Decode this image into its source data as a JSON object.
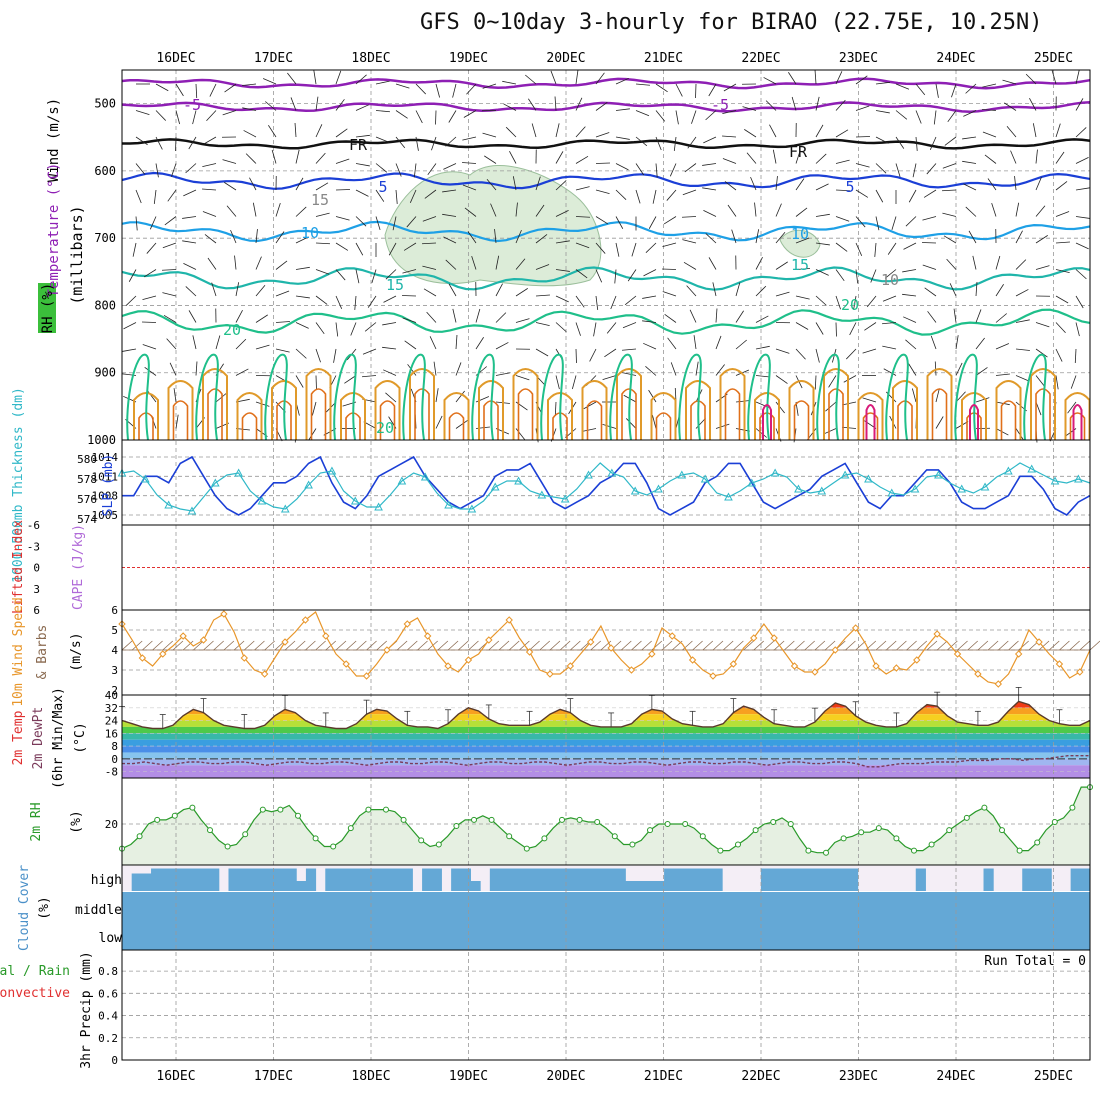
{
  "title": "GFS 0~10day 3-hourly for BIRAO (22.75E, 10.25N)",
  "colors": {
    "frame": "#000000",
    "grid": "#999999",
    "purple": "#8e1fb4",
    "blue_line": "#1b3fd6",
    "light_blue": "#1ea0e6",
    "teal": "#1fb5aa",
    "green_iso": "#1fbf8a",
    "orange": "#e09a2a",
    "dark_orange": "#e0701a",
    "magenta": "#d81b7a",
    "cyan": "#30b8c8",
    "wind_orange": "#e8962a",
    "rh_green": "#2a9a2a",
    "cloud": "#64a8d6",
    "rh_fill": "#e6f0e2",
    "barb": "#222222"
  },
  "chart_data": [
    {
      "panel": "upper-air",
      "type": "contour",
      "dates": [
        "16DEC",
        "17DEC",
        "18DEC",
        "19DEC",
        "20DEC",
        "21DEC",
        "22DEC",
        "23DEC",
        "24DEC",
        "25DEC"
      ],
      "ylabel_wind": "Wind (m/s)",
      "ylabel_temp": "Temperature (°C)",
      "ylabel_rh": "RH (%)",
      "ylabel_units": "(millibars)",
      "yticks": [
        "500",
        "600",
        "700",
        "800",
        "900",
        "1000"
      ],
      "contour_labels": [
        "-5",
        "-5",
        "FR",
        "FR",
        "5",
        "5",
        "10",
        "10",
        "15",
        "15",
        "15",
        "20",
        "20",
        "20",
        "10"
      ]
    },
    {
      "panel": "pressure",
      "type": "line",
      "ylabel_thick": "1000-500mb Thickness (dm)",
      "ylabel_slp": "SLP (mb)",
      "thickness_ticks": [
        "580",
        "578",
        "576",
        "574"
      ],
      "slp_ticks": [
        "1014",
        "1011",
        "1008",
        "1005"
      ],
      "series": [
        {
          "name": "SLP (mb)",
          "values": [
            1008,
            1008,
            1011,
            1011,
            1010,
            1013,
            1014,
            1011,
            1008,
            1006,
            1005,
            1006,
            1008,
            1010,
            1010,
            1011,
            1013,
            1014,
            1010,
            1007,
            1006,
            1008,
            1011,
            1012,
            1013,
            1014,
            1011,
            1009,
            1007,
            1006,
            1007,
            1008,
            1011,
            1012,
            1012,
            1013,
            1010,
            1007,
            1006,
            1007,
            1008,
            1010,
            1011,
            1013,
            1013,
            1010,
            1006,
            1005,
            1006,
            1007,
            1010,
            1011,
            1013,
            1013,
            1010,
            1007,
            1006,
            1007,
            1008,
            1009,
            1011,
            1012,
            1013,
            1010,
            1007,
            1006,
            1008,
            1008,
            1010,
            1012,
            1012,
            1010,
            1007,
            1006,
            1006,
            1007,
            1008,
            1011,
            1011,
            1009,
            1006,
            1005,
            1007,
            1008
          ]
        },
        {
          "name": "Thickness (dm)",
          "values": [
            578.6,
            578.8,
            578.0,
            576.4,
            575.4,
            575.0,
            574.8,
            576.2,
            577.6,
            578.4,
            578.6,
            576.8,
            575.8,
            575.2,
            575.0,
            576.0,
            577.4,
            578.6,
            578.8,
            576.8,
            575.8,
            575.2,
            575.2,
            576.4,
            577.8,
            578.6,
            578.2,
            576.6,
            575.4,
            575.0,
            575.0,
            575.8,
            577.2,
            577.8,
            577.8,
            576.8,
            576.4,
            576.2,
            576.0,
            577.0,
            578.4,
            579.6,
            578.6,
            578.2,
            576.8,
            576.4,
            577.0,
            577.8,
            578.4,
            578.6,
            578.0,
            576.6,
            576.2,
            576.8,
            577.6,
            578.0,
            578.6,
            578.2,
            577.0,
            576.6,
            576.8,
            577.6,
            578.4,
            578.6,
            578.0,
            577.2,
            576.6,
            576.4,
            577.0,
            578.2,
            578.4,
            577.6,
            577.0,
            576.6,
            577.2,
            578.2,
            578.8,
            579.6,
            579.0,
            578.4,
            577.8,
            577.6,
            578.0,
            577.6
          ]
        }
      ]
    },
    {
      "panel": "instability",
      "type": "line",
      "ylabel_li": "Lifted Index",
      "ylabel_cape": "CAPE (J/kg)",
      "yticks": [
        "-6",
        "-3",
        "0",
        "3",
        "6"
      ],
      "series": [
        {
          "name": "Lifted Index",
          "values": []
        },
        {
          "name": "CAPE (J/kg)",
          "values": []
        }
      ]
    },
    {
      "panel": "wind10m",
      "type": "line",
      "ylabel": "10m Wind Speed & Barbs",
      "yunits": "(m/s)",
      "yticks": [
        "6",
        "5",
        "4",
        "3",
        "2"
      ],
      "ylim": [
        2,
        6
      ],
      "series": [
        {
          "name": "10m Wind Speed (m/s)",
          "values": [
            5.3,
            4.5,
            3.6,
            3.2,
            3.8,
            4.2,
            4.7,
            4.2,
            4.5,
            5.5,
            5.8,
            4.9,
            3.6,
            3.0,
            2.8,
            3.6,
            4.4,
            4.9,
            5.5,
            5.9,
            4.7,
            3.8,
            3.3,
            2.7,
            2.7,
            3.3,
            4.0,
            4.5,
            5.3,
            5.6,
            4.7,
            3.8,
            3.2,
            2.9,
            3.5,
            3.8,
            4.5,
            5.0,
            5.5,
            4.6,
            3.9,
            3.0,
            2.8,
            2.8,
            3.2,
            3.8,
            4.4,
            5.2,
            4.1,
            3.5,
            3.0,
            3.3,
            3.8,
            5.1,
            4.7,
            4.3,
            3.5,
            3.0,
            2.7,
            2.8,
            3.3,
            4.1,
            4.6,
            5.3,
            4.6,
            3.9,
            3.2,
            2.9,
            2.9,
            3.3,
            4.0,
            4.6,
            5.1,
            4.3,
            3.2,
            2.8,
            3.1,
            3.0,
            3.5,
            4.2,
            4.8,
            4.4,
            3.8,
            3.3,
            2.8,
            2.4,
            2.3,
            2.8,
            3.8,
            5.0,
            4.4,
            3.8,
            3.3,
            2.6,
            2.9,
            4.0
          ]
        }
      ]
    },
    {
      "panel": "temperature",
      "type": "area",
      "ylabel_temp": "2m Temp",
      "ylabel_dew": "2m DewPt",
      "ylabel_minmax": "(6hr Min/Max)",
      "yunits": "(°C)",
      "yticks": [
        "40",
        "32",
        "24",
        "16",
        "8",
        "0",
        "-8"
      ],
      "ylim": [
        -12,
        40
      ],
      "series": [
        {
          "name": "2m Temp",
          "values": [
            24,
            22,
            20,
            19,
            19,
            21,
            27,
            31,
            29,
            24,
            21,
            20,
            19,
            19,
            21,
            27,
            31,
            29,
            24,
            21,
            20,
            19,
            19,
            22,
            28,
            31,
            30,
            25,
            21,
            20,
            20,
            19,
            22,
            28,
            32,
            30,
            25,
            22,
            21,
            21,
            21,
            23,
            28,
            31,
            29,
            24,
            21,
            20,
            20,
            20,
            22,
            28,
            31,
            30,
            25,
            22,
            21,
            20,
            20,
            22,
            29,
            33,
            31,
            26,
            22,
            21,
            20,
            20,
            23,
            30,
            35,
            33,
            27,
            23,
            21,
            20,
            20,
            22,
            29,
            34,
            33,
            27,
            23,
            22,
            21,
            21,
            23,
            30,
            36,
            34,
            28,
            24,
            22,
            21,
            21,
            24
          ]
        },
        {
          "name": "2m DewPt",
          "values": [
            -3,
            -3,
            -2,
            -3,
            -4,
            -3,
            -2,
            -2,
            -3,
            -3,
            -2,
            -2,
            -3,
            -4,
            -3,
            -2,
            -2,
            -3,
            -3,
            -2,
            -2,
            -3,
            -4,
            -3,
            -2,
            -2,
            -3,
            -3,
            -2,
            -2,
            -3,
            -4,
            -3,
            -2,
            -2,
            -3,
            -3,
            -2,
            -2,
            -3,
            -4,
            -3,
            -2,
            -2,
            -3,
            -3,
            -2,
            -2,
            -3,
            -4,
            -3,
            -2,
            -2,
            -3,
            -3,
            -2,
            -2,
            -3,
            -4,
            -3,
            -2,
            -2,
            -3,
            -3,
            -2,
            -2,
            -3,
            -5,
            -5,
            -4,
            -3,
            -3,
            -3,
            -2,
            -2,
            -2,
            -1,
            -1,
            -1,
            0,
            0,
            -1,
            0,
            0,
            1,
            2,
            2,
            2
          ]
        }
      ]
    },
    {
      "panel": "rh2m",
      "type": "area",
      "ylabel": "2m RH",
      "yunits": "(%)",
      "yticks": [
        "20"
      ],
      "ylim": [
        0,
        40
      ],
      "series": [
        {
          "name": "2m RH (%)",
          "values": [
            8,
            10,
            14,
            20,
            22,
            22,
            24,
            27,
            28,
            22,
            17,
            12,
            9,
            10,
            15,
            22,
            27,
            26,
            27,
            29,
            24,
            18,
            13,
            9,
            9,
            12,
            18,
            24,
            27,
            27,
            27,
            26,
            22,
            17,
            12,
            9,
            10,
            14,
            19,
            22,
            22,
            24,
            22,
            18,
            14,
            11,
            8,
            9,
            13,
            18,
            22,
            23,
            22,
            21,
            21,
            18,
            14,
            10,
            10,
            12,
            17,
            20,
            20,
            20,
            20,
            18,
            14,
            10,
            7,
            7,
            10,
            13,
            17,
            20,
            21,
            23,
            20,
            13,
            7,
            6,
            6,
            11,
            13,
            14,
            16,
            16,
            18,
            17,
            13,
            9,
            7,
            7,
            10,
            13,
            17,
            20,
            23,
            26,
            28,
            24,
            17,
            12,
            7,
            7,
            11,
            17,
            21,
            23,
            28,
            38,
            38
          ]
        }
      ]
    },
    {
      "panel": "cloud",
      "type": "bar",
      "ylabel": "Cloud Cover",
      "yunits": "(%)",
      "levels": [
        "high",
        "middle",
        "low"
      ],
      "series": [
        {
          "name": "high",
          "values": [
            0,
            70,
            70,
            90,
            90,
            90,
            90,
            90,
            90,
            90,
            0,
            90,
            90,
            90,
            90,
            90,
            90,
            90,
            40,
            90,
            0,
            90,
            90,
            90,
            90,
            90,
            90,
            90,
            90,
            90,
            0,
            90,
            90,
            0,
            90,
            90,
            40,
            0,
            90,
            90,
            90,
            90,
            90,
            90,
            90,
            90,
            90,
            90,
            90,
            90,
            90,
            90,
            40,
            40,
            40,
            40,
            90,
            90,
            90,
            90,
            90,
            90,
            0,
            0,
            0,
            0,
            90,
            90,
            90,
            90,
            90,
            90,
            90,
            90,
            90,
            90,
            0,
            0,
            0,
            0,
            0,
            0,
            90,
            0,
            0,
            0,
            0,
            0,
            0,
            90,
            0,
            0,
            0,
            90,
            90,
            90,
            0,
            0,
            90,
            90
          ]
        },
        {
          "name": "middle",
          "values": [
            100
          ]
        },
        {
          "name": "low",
          "values": [
            100
          ]
        }
      ]
    },
    {
      "panel": "precip",
      "type": "bar",
      "ylabel_total": "Total / Rain",
      "ylabel_conv": "Convective",
      "ylabel_precip": "3hr Precip (mm)",
      "yticks": [
        "0.8",
        "0.6",
        "0.4",
        "0.2",
        "0"
      ],
      "ylim": [
        0,
        0.9
      ],
      "run_total": "Run Total = 0",
      "series": [
        {
          "name": "Total / Rain",
          "values": []
        },
        {
          "name": "Convective",
          "values": []
        }
      ]
    }
  ]
}
